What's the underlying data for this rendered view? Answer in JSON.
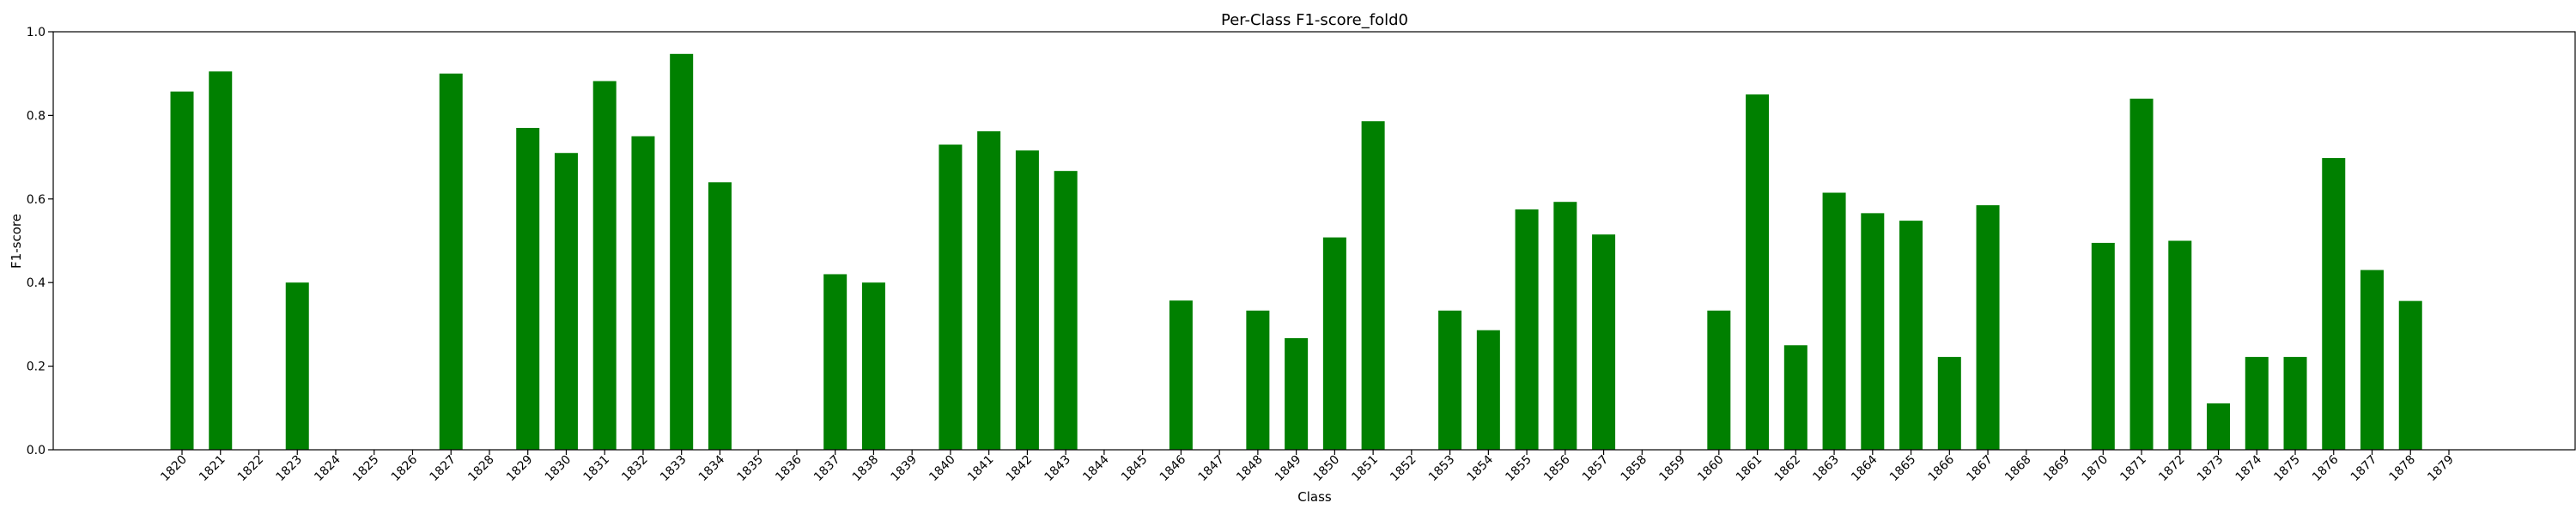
{
  "chart_data": {
    "type": "bar",
    "title": "Per-Class F1-score_fold0",
    "xlabel": "Class",
    "ylabel": "F1-score",
    "ylim": [
      0,
      1.0
    ],
    "yticks": [
      0.0,
      0.2,
      0.4,
      0.6,
      0.8,
      1.0
    ],
    "ytick_labels": [
      "0.0",
      "0.2",
      "0.4",
      "0.6",
      "0.8",
      "1.0"
    ],
    "bar_color": "#008000",
    "grid": false,
    "categories": [
      "1820",
      "1821",
      "1822",
      "1823",
      "1824",
      "1825",
      "1826",
      "1827",
      "1828",
      "1829",
      "1830",
      "1831",
      "1832",
      "1833",
      "1834",
      "1835",
      "1836",
      "1837",
      "1838",
      "1839",
      "1840",
      "1841",
      "1842",
      "1843",
      "1844",
      "1845",
      "1846",
      "1847",
      "1848",
      "1849",
      "1850",
      "1851",
      "1852",
      "1853",
      "1854",
      "1855",
      "1856",
      "1857",
      "1858",
      "1859",
      "1860",
      "1861",
      "1862",
      "1863",
      "1864",
      "1865",
      "1866",
      "1867",
      "1868",
      "1869",
      "1870",
      "1871",
      "1872",
      "1873",
      "1874",
      "1875",
      "1876",
      "1877",
      "1878",
      "1879"
    ],
    "values": [
      0.857,
      0.905,
      0,
      0.4,
      0,
      0,
      0,
      0.9,
      0,
      0.77,
      0.71,
      0.882,
      0.75,
      0.947,
      0.64,
      0,
      0,
      0.42,
      0.4,
      0,
      0.73,
      0.762,
      0.716,
      0.667,
      0,
      0,
      0.357,
      0,
      0.333,
      0.267,
      0.508,
      0.786,
      0,
      0.333,
      0.286,
      0.575,
      0.593,
      0.515,
      0,
      0,
      0.333,
      0.85,
      0.25,
      0.615,
      0.566,
      0.548,
      0.222,
      0.585,
      0,
      0,
      0.495,
      0.84,
      0.5,
      0.111,
      0.222,
      0.222,
      0.698,
      0.43,
      0.356,
      0
    ]
  }
}
